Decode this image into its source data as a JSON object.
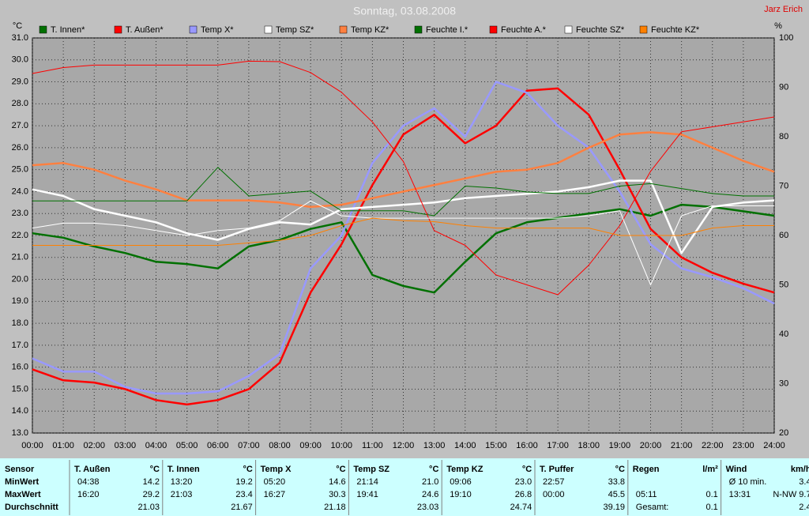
{
  "chart_data": {
    "type": "line",
    "title": "Sonntag, 03.08.2008",
    "annotation": "Jarz Erich",
    "y_label": "°C",
    "y2_label": "%",
    "x": [
      0,
      1,
      2,
      3,
      4,
      5,
      6,
      7,
      8,
      9,
      10,
      11,
      12,
      13,
      14,
      15,
      16,
      17,
      18,
      19,
      20,
      21,
      22,
      23,
      24
    ],
    "xlim": [
      0,
      24
    ],
    "xticks": [
      {
        "value": 0,
        "label": "00:00"
      },
      {
        "value": 1,
        "label": "01:00"
      },
      {
        "value": 2,
        "label": "02:00"
      },
      {
        "value": 3,
        "label": "03:00"
      },
      {
        "value": 4,
        "label": "04:00"
      },
      {
        "value": 5,
        "label": "05:00"
      },
      {
        "value": 6,
        "label": "06:00"
      },
      {
        "value": 7,
        "label": "07:00"
      },
      {
        "value": 8,
        "label": "08:00"
      },
      {
        "value": 9,
        "label": "09:00"
      },
      {
        "value": 10,
        "label": "10:00"
      },
      {
        "value": 11,
        "label": "11:00"
      },
      {
        "value": 12,
        "label": "12:00"
      },
      {
        "value": 13,
        "label": "13:00"
      },
      {
        "value": 14,
        "label": "14:00"
      },
      {
        "value": 15,
        "label": "15:00"
      },
      {
        "value": 16,
        "label": "16:00"
      },
      {
        "value": 17,
        "label": "17:00"
      },
      {
        "value": 18,
        "label": "18:00"
      },
      {
        "value": 19,
        "label": "19:00"
      },
      {
        "value": 20,
        "label": "20:00"
      },
      {
        "value": 21,
        "label": "21:00"
      },
      {
        "value": 22,
        "label": "22:00"
      },
      {
        "value": 23,
        "label": "23:00"
      },
      {
        "value": 24,
        "label": "24:00"
      }
    ],
    "ylim": [
      13,
      31
    ],
    "yticks": [
      {
        "value": 13,
        "label": "13.0"
      },
      {
        "value": 14,
        "label": "14.0"
      },
      {
        "value": 15,
        "label": "15.0"
      },
      {
        "value": 16,
        "label": "16.0"
      },
      {
        "value": 17,
        "label": "17.0"
      },
      {
        "value": 18,
        "label": "18.0"
      },
      {
        "value": 19,
        "label": "19.0"
      },
      {
        "value": 20,
        "label": "20.0"
      },
      {
        "value": 21,
        "label": "21.0"
      },
      {
        "value": 22,
        "label": "22.0"
      },
      {
        "value": 23,
        "label": "23.0"
      },
      {
        "value": 24,
        "label": "24.0"
      },
      {
        "value": 25,
        "label": "25.0"
      },
      {
        "value": 26,
        "label": "26.0"
      },
      {
        "value": 27,
        "label": "27.0"
      },
      {
        "value": 28,
        "label": "28.0"
      },
      {
        "value": 29,
        "label": "29.0"
      },
      {
        "value": 30,
        "label": "30.0"
      },
      {
        "value": 31,
        "label": "31.0"
      }
    ],
    "y2lim": [
      20,
      100
    ],
    "y2ticks": [
      20,
      30,
      40,
      50,
      60,
      70,
      80,
      90,
      100
    ],
    "grid": true,
    "series": [
      {
        "name": "T. Innen*",
        "color": "#007000",
        "values": [
          22.1,
          21.9,
          21.5,
          21.2,
          20.8,
          20.7,
          20.5,
          21.5,
          21.8,
          22.3,
          22.6,
          20.2,
          19.7,
          19.4,
          20.8,
          22.1,
          22.6,
          22.8,
          23.0,
          23.2,
          22.9,
          23.4,
          23.3,
          23.1,
          22.9
        ]
      },
      {
        "name": "T. Außen*",
        "color": "#ff0000",
        "values": [
          15.9,
          15.4,
          15.3,
          15.0,
          14.5,
          14.3,
          14.5,
          15.0,
          16.2,
          19.4,
          21.6,
          24.3,
          26.6,
          27.5,
          26.2,
          27.0,
          28.6,
          28.7,
          27.5,
          25.0,
          22.3,
          21.0,
          20.3,
          19.8,
          19.4
        ]
      },
      {
        "name": "Temp X*",
        "color": "#9999ff",
        "values": [
          16.4,
          15.8,
          15.8,
          15.1,
          14.8,
          14.8,
          14.9,
          15.6,
          16.6,
          20.5,
          22.0,
          25.3,
          27.0,
          27.8,
          26.5,
          29.0,
          28.5,
          27.0,
          26.0,
          24.0,
          21.6,
          20.5,
          20.1,
          19.6,
          18.9
        ]
      },
      {
        "name": "Temp SZ*",
        "color": "#ffffff",
        "values": [
          24.1,
          23.8,
          23.2,
          22.9,
          22.6,
          22.1,
          21.8,
          22.3,
          22.6,
          22.5,
          23.2,
          23.3,
          23.4,
          23.5,
          23.7,
          23.8,
          23.9,
          24.0,
          24.2,
          24.5,
          24.5,
          21.2,
          23.3,
          23.5,
          23.6
        ]
      },
      {
        "name": "Temp KZ*",
        "color": "#ff8040",
        "values": [
          25.2,
          25.3,
          25.0,
          24.5,
          24.1,
          23.6,
          23.6,
          23.6,
          23.5,
          23.3,
          23.4,
          23.7,
          24.0,
          24.3,
          24.6,
          24.9,
          25.0,
          25.3,
          26.0,
          26.6,
          26.7,
          26.6,
          26.0,
          25.4,
          24.9
        ]
      },
      {
        "name": "Feuchte I.*",
        "color": "#007000",
        "axis": "y2",
        "values": [
          67,
          67,
          67,
          67,
          67,
          67,
          73.8,
          68,
          68.5,
          69,
          65,
          65,
          65,
          64,
          70,
          69.6,
          68.8,
          68.5,
          68.5,
          70,
          70.5,
          69.5,
          68.5,
          68,
          68
        ]
      },
      {
        "name": "Feuchte A.*",
        "color": "#ff0000",
        "axis": "y2",
        "values": [
          92.8,
          94,
          94.5,
          94.5,
          94.5,
          94.5,
          94.5,
          95.3,
          95.2,
          93,
          89,
          83,
          75,
          61,
          58,
          52,
          50,
          48,
          54,
          62,
          73,
          81,
          82,
          83,
          84
        ]
      },
      {
        "name": "Feuchte SZ*",
        "color": "#ffffff",
        "axis": "y2",
        "values": [
          61.5,
          62.5,
          62.5,
          62,
          61,
          60,
          61,
          61.5,
          63,
          67,
          64,
          63.5,
          63.5,
          63.5,
          63.5,
          63.5,
          63.5,
          63.5,
          64,
          65,
          50,
          64,
          66,
          66,
          66
        ]
      },
      {
        "name": "Feuchte KZ*",
        "color": "#ff8000",
        "axis": "y2",
        "values": [
          58,
          58,
          58,
          58,
          58,
          58,
          58,
          58.5,
          59,
          60,
          62,
          63.5,
          63,
          62.8,
          62,
          61.5,
          61.5,
          61.5,
          61.5,
          60,
          60,
          60,
          61.5,
          62,
          62
        ]
      }
    ]
  },
  "table": {
    "header": "Sensor",
    "row_labels": [
      "MinWert",
      "MaxWert",
      "Durchschnitt"
    ],
    "groups": [
      {
        "name": "T. Außen",
        "unit": "°C",
        "rows": [
          [
            "04:38",
            "14.2"
          ],
          [
            "16:20",
            "29.2"
          ],
          [
            "21.03"
          ]
        ]
      },
      {
        "name": "T. Innen",
        "unit": "°C",
        "rows": [
          [
            "13:20",
            "19.2"
          ],
          [
            "21:03",
            "23.4"
          ],
          [
            "21.67"
          ]
        ]
      },
      {
        "name": "Temp X",
        "unit": "°C",
        "rows": [
          [
            "05:20",
            "14.6"
          ],
          [
            "16:27",
            "30.3"
          ],
          [
            "21.18"
          ]
        ]
      },
      {
        "name": "Temp SZ",
        "unit": "°C",
        "rows": [
          [
            "21:14",
            "21.0"
          ],
          [
            "19:41",
            "24.6"
          ],
          [
            "23.03"
          ]
        ]
      },
      {
        "name": "Temp KZ",
        "unit": "°C",
        "rows": [
          [
            "09:06",
            "23.0"
          ],
          [
            "19:10",
            "26.8"
          ],
          [
            "24.74"
          ]
        ]
      },
      {
        "name": "T. Puffer",
        "unit": "°C",
        "rows": [
          [
            "22:57",
            "33.8"
          ],
          [
            "00:00",
            "45.5"
          ],
          [
            "39.19"
          ]
        ]
      },
      {
        "name": "Regen",
        "unit": "l/m²",
        "rows": [
          [],
          [
            "05:11",
            "0.1"
          ],
          [
            "Gesamt:",
            "0.1"
          ]
        ]
      },
      {
        "name": "Wind",
        "unit": "km/h",
        "rows": [
          [
            "Ø 10 min.",
            "3.4"
          ],
          [
            "13:31",
            "N-NW 9.7"
          ],
          [
            "2.4"
          ]
        ]
      }
    ]
  }
}
